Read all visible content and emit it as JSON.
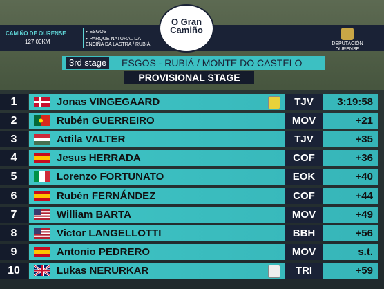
{
  "header": {
    "route_label": "CAMIÑO DE OURENSE",
    "distance": "127,00KM",
    "start": "ESGOS",
    "climb": "PARQUE NATURAL DA ENCIÑA DA LASTRA / RUBIÁ",
    "logo": "O Gran Camiño",
    "sponsor": "DEPUTACIÓN OURENSE"
  },
  "stage": {
    "number": "3rd stage",
    "route": "ESGOS - RUBIÁ / MONTE DO CASTELO",
    "status": "PROVISIONAL STAGE"
  },
  "table": {
    "rows": [
      [
        "1",
        "Jonas VINGEGAARD",
        "TJV",
        "3:19:58"
      ],
      [
        "2",
        "Rubén GUERREIRO",
        "MOV",
        "+21"
      ],
      [
        "3",
        "Attila VALTER",
        "TJV",
        "+35"
      ],
      [
        "4",
        "Jesus HERRADA",
        "COF",
        "+36"
      ],
      [
        "5",
        "Lorenzo FORTUNATO",
        "EOK",
        "+40"
      ],
      [
        "6",
        "Rubén FERNÁNDEZ",
        "COF",
        "+44"
      ],
      [
        "7",
        "William BARTA",
        "MOV",
        "+49"
      ],
      [
        "8",
        "Victor LANGELLOTTI",
        "BBH",
        "+56"
      ],
      [
        "9",
        "Antonio PEDRERO",
        "MOV",
        "s.t."
      ],
      [
        "10",
        "Lukas NERURKAR",
        "TRI",
        "+59"
      ]
    ]
  }
}
